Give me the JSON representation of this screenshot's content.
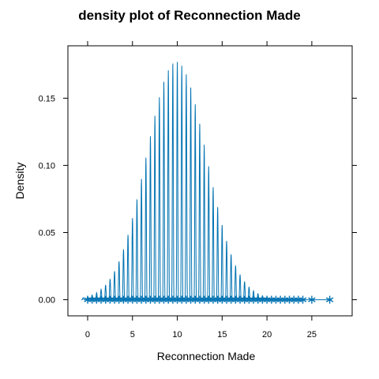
{
  "chart_data": {
    "type": "line",
    "title": "density plot of Reconnection Made",
    "xlabel": "Reconnection Made",
    "ylabel": "Density",
    "xlim": [
      -2.2,
      29.5
    ],
    "ylim": [
      -0.012,
      0.189
    ],
    "x_ticks": [
      0,
      5,
      10,
      15,
      20,
      25
    ],
    "y_ticks": [
      0.0,
      0.05,
      0.1,
      0.15
    ],
    "y_tick_labels": [
      "0.00",
      "0.05",
      "0.10",
      "0.15"
    ],
    "series_color": "#0072b2",
    "density_curve": {
      "x_start": -0.7,
      "x_end": 27.2,
      "peak_spacing": 0.5,
      "envelope_center": 9.9,
      "envelope_sd": 3.35,
      "peak_max": 0.177
    },
    "rug_points": [
      0,
      0.5,
      1,
      1.5,
      2,
      2.5,
      3,
      3.5,
      4,
      4.5,
      5,
      5.5,
      6,
      6.5,
      7,
      7.5,
      8,
      8.5,
      9,
      9.5,
      10,
      10.5,
      11,
      11.5,
      12,
      12.5,
      13,
      13.5,
      14,
      14.5,
      15,
      15.5,
      16,
      16.5,
      17,
      17.5,
      18,
      18.5,
      19,
      19.5,
      20,
      20.5,
      21,
      21.5,
      22,
      22.5,
      23,
      23.5,
      24,
      25,
      27
    ]
  }
}
